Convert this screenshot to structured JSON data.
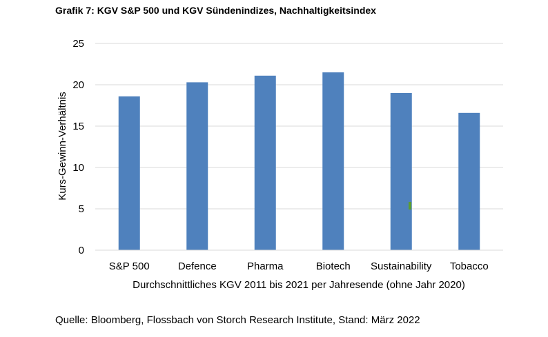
{
  "chart_data": {
    "type": "bar",
    "title": "Grafik 7: KGV S&P 500 und KGV Sündenindizes, Nachhaltigkeitsindex",
    "categories": [
      "S&P 500",
      "Defence",
      "Pharma",
      "Biotech",
      "Sustainability",
      "Tobacco"
    ],
    "values": [
      18.6,
      20.3,
      21.1,
      21.5,
      19.0,
      16.6
    ],
    "xlabel": "Durchschnittliches KGV 2011 bis 2021 per Jahresende (ohne Jahr 2020)",
    "ylabel": "Kurs-Gewinn-Verhältnis",
    "ylim": [
      0,
      25
    ],
    "yticks": [
      0,
      5,
      10,
      15,
      20,
      25
    ],
    "grid": true,
    "bar_color": "#4f81bd",
    "grid_color": "#d9d9d9"
  },
  "source": "Quelle: Bloomberg, Flossbach von Storch Research Institute, Stand: März 2022"
}
